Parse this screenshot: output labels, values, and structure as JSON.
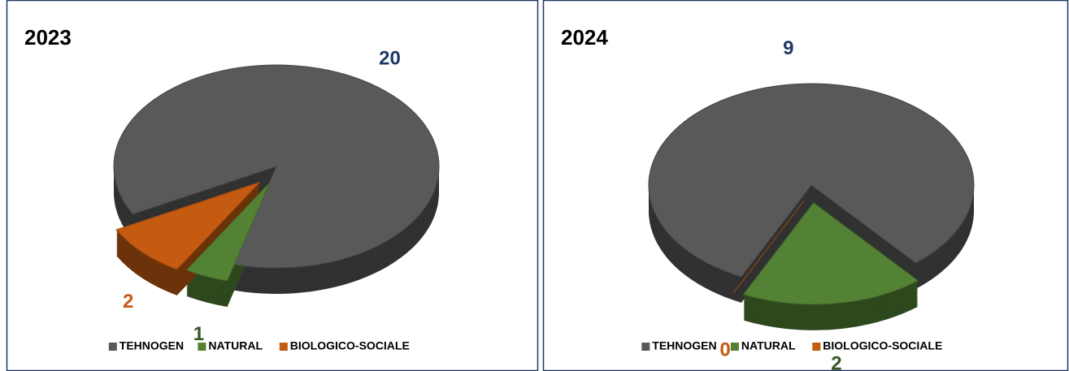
{
  "chart_data": [
    {
      "type": "pie",
      "title": "2023",
      "categories": [
        "TEHNOGEN",
        "NATURAL",
        "BIOLOGICO-SOCIALE"
      ],
      "values": [
        20,
        1,
        2
      ],
      "colors": [
        "#595959",
        "#548235",
        "#c55a11"
      ],
      "value_label_colors": [
        "#1f3864",
        "#375623",
        "#c55a11"
      ],
      "legend": "bottom"
    },
    {
      "type": "pie",
      "title": "2024",
      "categories": [
        "TEHNOGEN",
        "NATURAL",
        "BIOLOGICO-SOCIALE"
      ],
      "values": [
        9,
        2,
        0
      ],
      "colors": [
        "#595959",
        "#548235",
        "#c55a11"
      ],
      "value_label_colors": [
        "#1f3864",
        "#375623",
        "#c55a11"
      ],
      "legend": "bottom"
    }
  ]
}
